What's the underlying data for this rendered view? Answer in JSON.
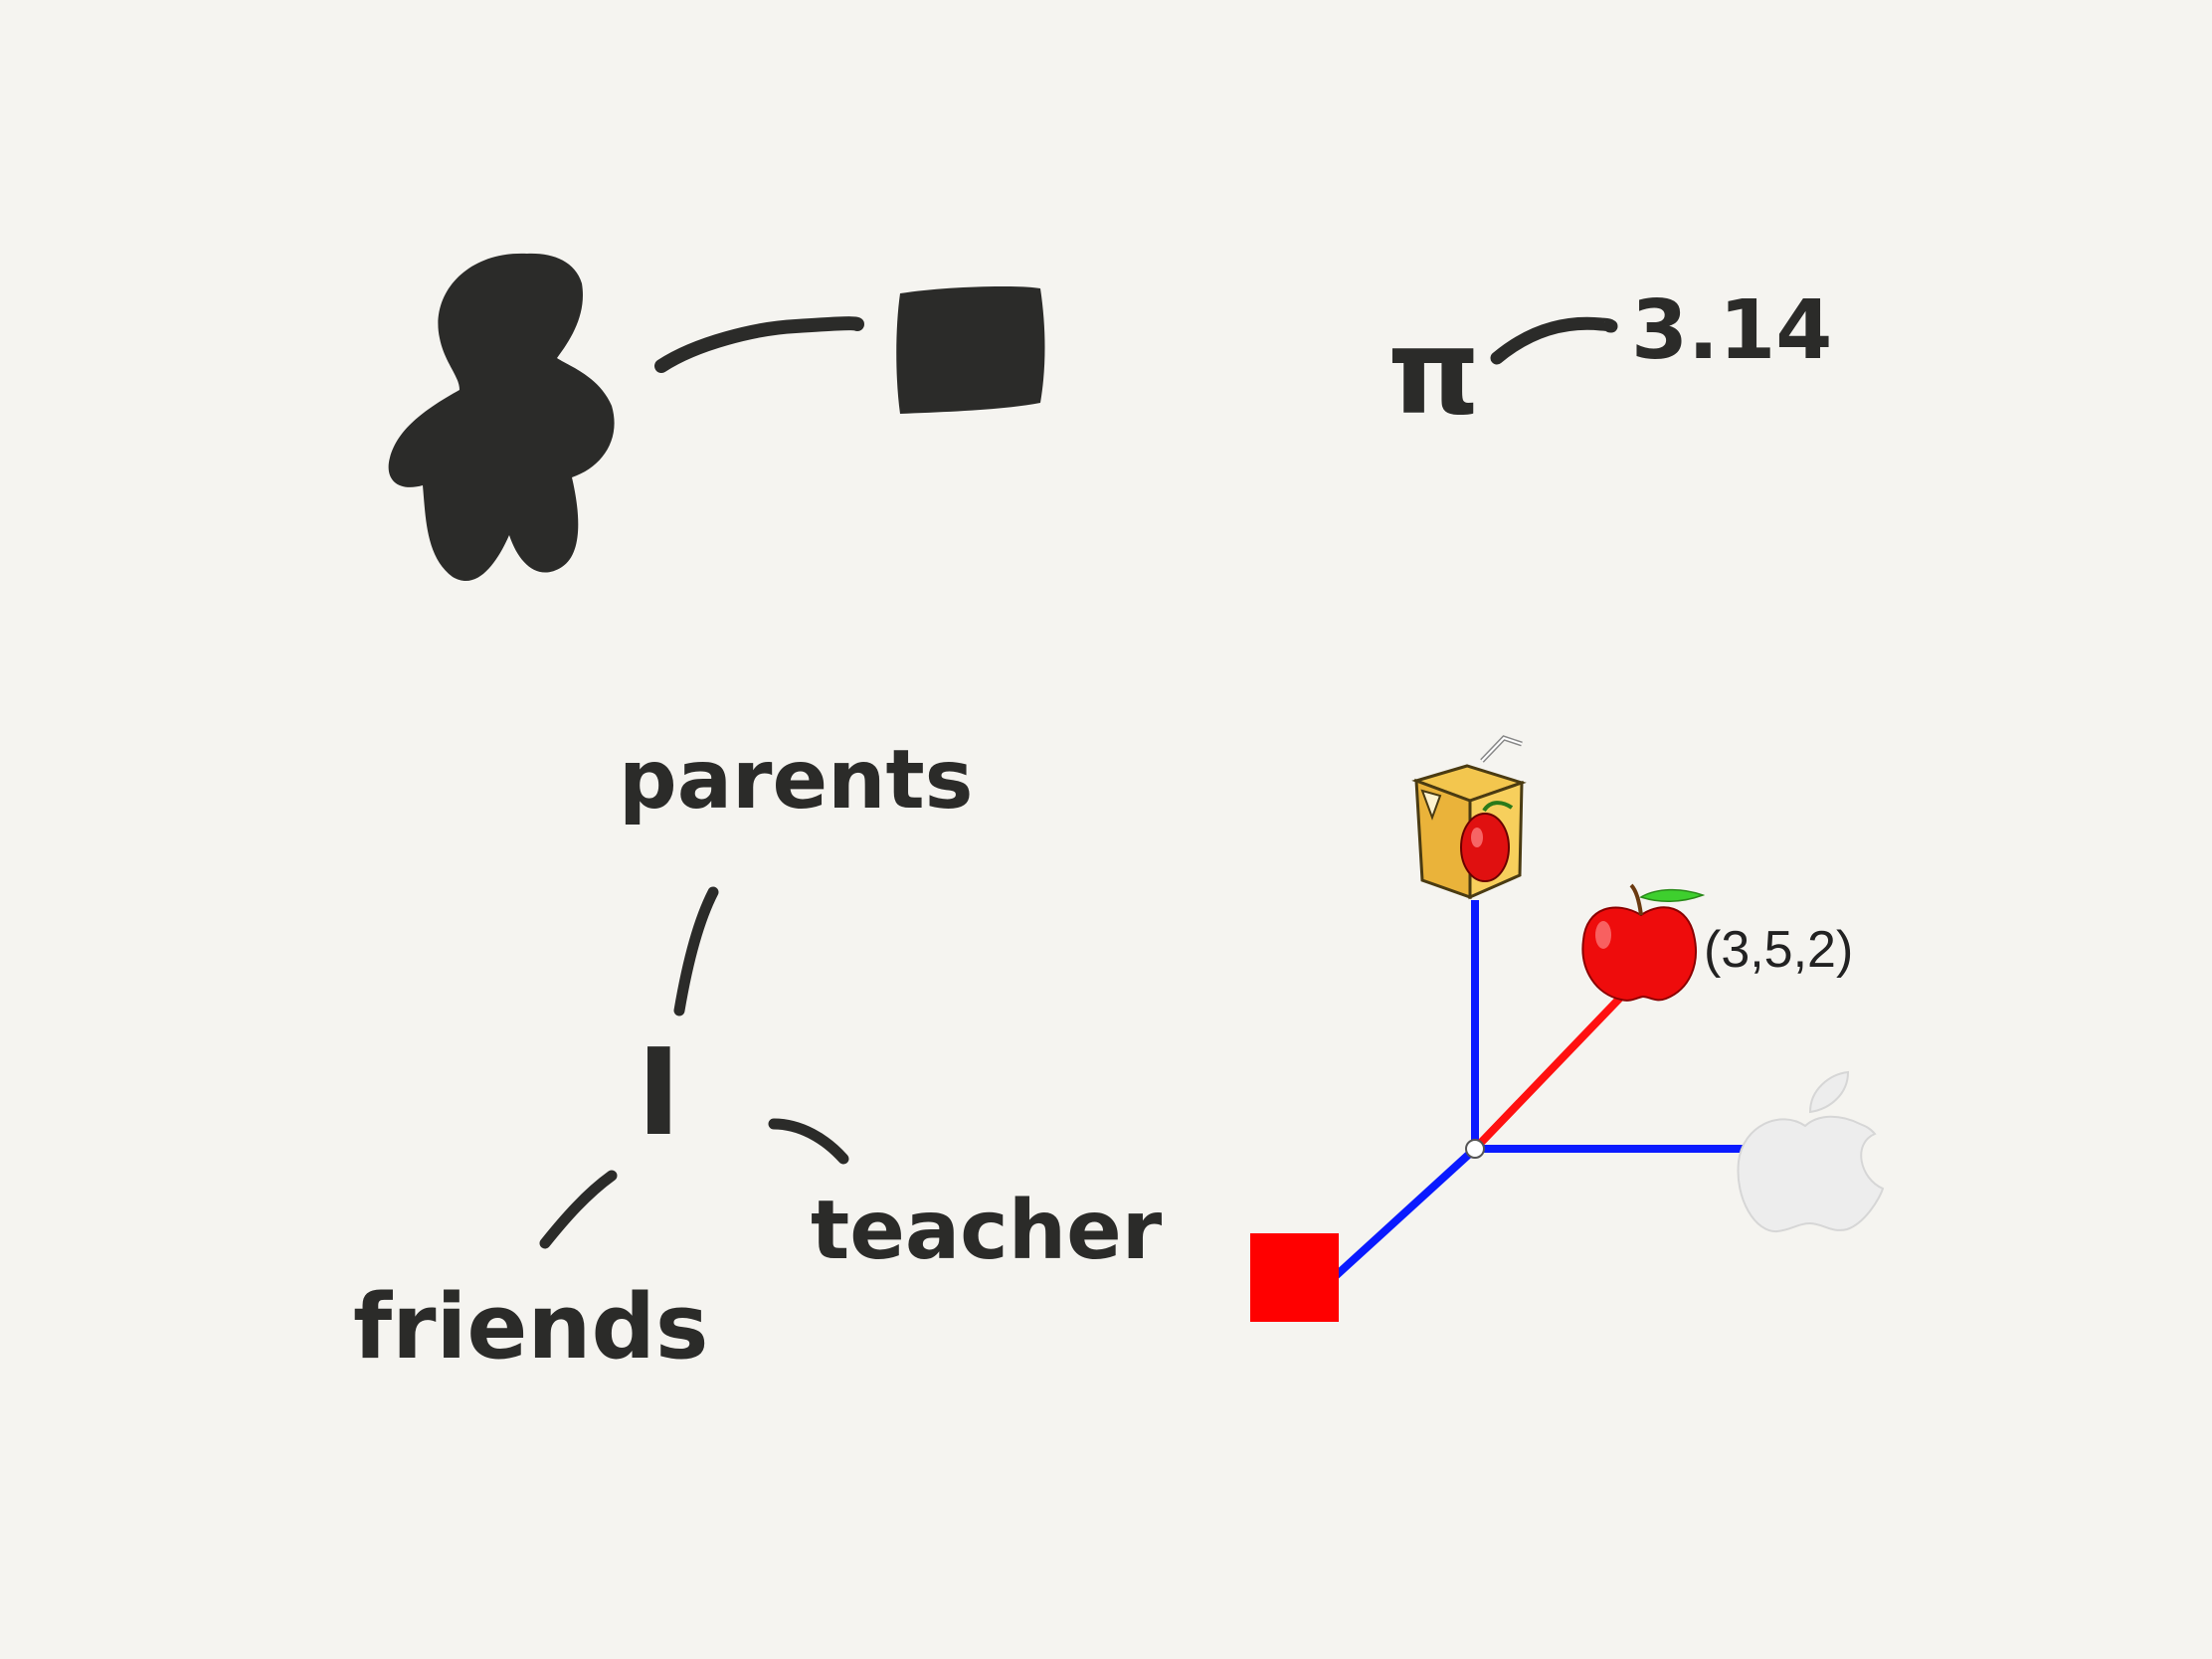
{
  "sketch_top": {
    "pi_symbol": "π",
    "pi_value": "3.14"
  },
  "relation_map": {
    "parents": "parents",
    "self": "I",
    "teacher": "teacher",
    "friends": "friends"
  },
  "axes_3d": {
    "point_label": "(3,5,2)",
    "colors": {
      "x_axis": "#0a1aff",
      "y_axis": "#0a1aff",
      "z_axis": "#0a1aff",
      "vector": "#ff1010",
      "box_marker": "#ff0000"
    },
    "icons": {
      "top": "juice-box-icon",
      "vector_tip": "red-apple-icon",
      "right": "apple-logo-icon",
      "left": "red-square-icon"
    }
  }
}
